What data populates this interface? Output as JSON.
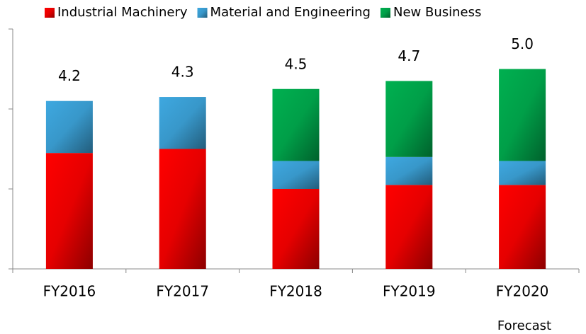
{
  "chart_data": {
    "type": "stacked_bar",
    "categories": [
      "FY2016",
      "FY2017",
      "FY2018",
      "FY2019",
      "FY2020"
    ],
    "series": [
      {
        "name": "Industrial Machinery",
        "color": "#ff0000",
        "values": [
          2.9,
          3.0,
          2.0,
          2.1,
          2.1
        ]
      },
      {
        "name": "Material and Engineering",
        "color": "#3ea8e0",
        "values": [
          1.3,
          1.3,
          0.7,
          0.7,
          0.6
        ]
      },
      {
        "name": "New Business",
        "color": "#00b050",
        "values": [
          null,
          null,
          1.8,
          1.9,
          2.3
        ]
      }
    ],
    "totals": {
      "values": [
        4.2,
        4.3,
        4.5,
        4.7,
        5.0
      ],
      "value_labels": [
        "4.2",
        "4.3",
        "4.5",
        "4.7",
        "5.0"
      ]
    },
    "annotation": "Forecast",
    "ylim": [
      0,
      6
    ],
    "yticks": [
      0,
      2,
      4,
      6
    ],
    "legend": "top"
  }
}
